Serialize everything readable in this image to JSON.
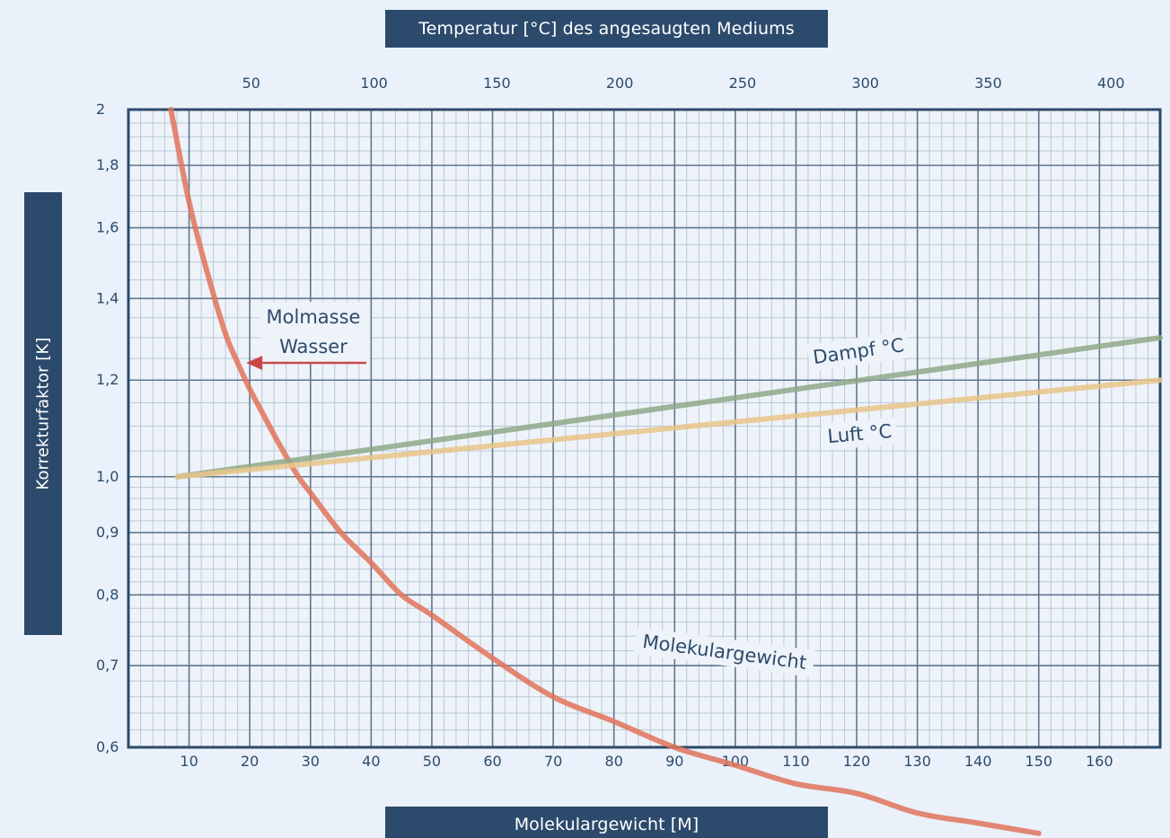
{
  "chart_data": {
    "type": "line",
    "title": "",
    "top_axis": {
      "label": "Temperatur [°C] des angesaugten Mediums",
      "ticks": [
        "50",
        "100",
        "150",
        "200",
        "250",
        "300",
        "350",
        "400"
      ],
      "tick_values": [
        50,
        100,
        150,
        200,
        250,
        300,
        350,
        400
      ],
      "range": [
        0,
        420
      ]
    },
    "bottom_axis": {
      "label": "Molekulargewicht [M]",
      "ticks": [
        "10",
        "20",
        "30",
        "40",
        "50",
        "60",
        "70",
        "80",
        "90",
        "100",
        "110",
        "120",
        "130",
        "140",
        "150",
        "160"
      ],
      "tick_values": [
        10,
        20,
        30,
        40,
        50,
        60,
        70,
        80,
        90,
        100,
        110,
        120,
        130,
        140,
        150,
        160
      ],
      "range": [
        0,
        170
      ]
    },
    "y_axis": {
      "label": "Korrekturfaktor [K]",
      "scale": "log",
      "ticks": [
        "2",
        "1,8",
        "1,6",
        "1,4",
        "1,2",
        "1,0",
        "0,9",
        "0,8",
        "0,7",
        "0,6"
      ],
      "tick_values": [
        2,
        1.8,
        1.6,
        1.4,
        1.2,
        1.0,
        0.9,
        0.8,
        0.7,
        0.6
      ],
      "range": [
        0.6,
        2
      ]
    },
    "grid": true,
    "series": [
      {
        "name": "Molekulargewicht",
        "axis": "bottom",
        "color": "#e0735c",
        "x": [
          7,
          10,
          13,
          16,
          18,
          20,
          22,
          25,
          28,
          30,
          35,
          40,
          45,
          50,
          60,
          70,
          80,
          90,
          100,
          110,
          120,
          130,
          140,
          150
        ],
        "y": [
          2.0,
          1.68,
          1.47,
          1.31,
          1.24,
          1.18,
          1.13,
          1.06,
          1.0,
          0.97,
          0.9,
          0.85,
          0.8,
          0.77,
          0.71,
          0.66,
          0.63,
          0.6,
          0.58,
          0.56,
          0.55,
          0.53,
          0.52,
          0.51
        ]
      },
      {
        "name": "Dampf °C",
        "axis": "top",
        "color": "#8fa889",
        "x": [
          20,
          420
        ],
        "y": [
          1.0,
          1.3
        ]
      },
      {
        "name": "Luft °C",
        "axis": "top",
        "color": "#e8c48a",
        "x": [
          20,
          420
        ],
        "y": [
          1.0,
          1.2
        ]
      }
    ],
    "annotations": [
      {
        "text_line1": "Molmasse",
        "text_line2": "Wasser",
        "points_to_x": 20,
        "points_to_y": 1.22
      },
      {
        "text": "Molekulargewicht"
      },
      {
        "text": "Dampf °C"
      },
      {
        "text": "Luft °C"
      }
    ]
  },
  "colors": {
    "banner": "#2c4a6b",
    "background": "#eaf1fa",
    "grid": "#2c4a6b",
    "arrow": "#c8474a"
  }
}
